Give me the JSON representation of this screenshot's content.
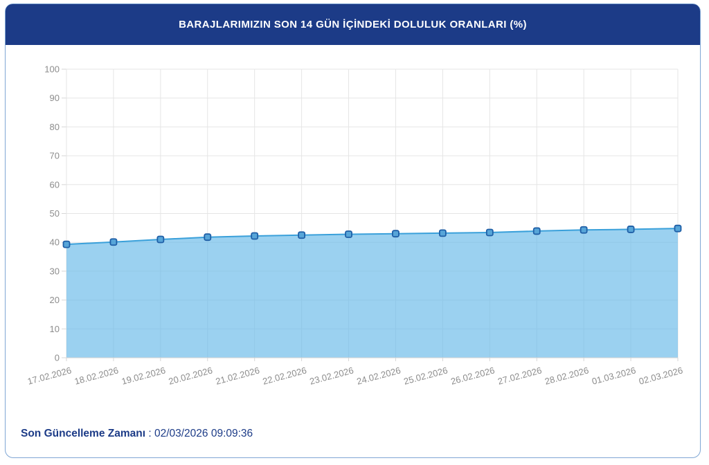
{
  "header": {
    "title": "BARAJLARIMIZIN SON 14 GÜN İÇİNDEKİ DOLULUK ORANLARI (%)",
    "bg_color": "#1c3b87",
    "text_color": "#ffffff"
  },
  "card": {
    "bg_color": "#ffffff",
    "border_color": "#7fa6d4"
  },
  "footer": {
    "label": "Son Güncelleme Zamanı",
    "separator": " : ",
    "value": "02/03/2026 09:09:36",
    "text_color": "#1c3b87"
  },
  "chart_data": {
    "type": "area",
    "title": "BARAJLARIMIZIN SON 14 GÜN İÇİNDEKİ DOLULUK ORANLARI (%)",
    "categories": [
      "17.02.2026",
      "18.02.2026",
      "19.02.2026",
      "20.02.2026",
      "21.02.2026",
      "22.02.2026",
      "23.02.2026",
      "24.02.2026",
      "25.02.2026",
      "26.02.2026",
      "27.02.2026",
      "28.02.2026",
      "01.03.2026",
      "02.03.2026"
    ],
    "values": [
      39.3,
      40.1,
      41.0,
      41.8,
      42.2,
      42.5,
      42.8,
      43.0,
      43.2,
      43.4,
      43.9,
      44.3,
      44.5,
      44.8
    ],
    "xlabel": "",
    "ylabel": "",
    "ylim": [
      0,
      100
    ],
    "ytick_step": 10,
    "grid": true,
    "legend": false,
    "marker_shape": "rounded-square",
    "x_label_rotation_deg": -15,
    "colors": {
      "line": "#3aa0da",
      "area_fill": "rgba(102,184,232,0.65)",
      "marker_fill": "#57a5d8",
      "marker_stroke": "#1e5ea6",
      "gridline": "#e5e5e5",
      "axis_line": "#d2d2d2",
      "tick": "#d6d6d6",
      "axis_label": "#8c8c8c"
    }
  }
}
